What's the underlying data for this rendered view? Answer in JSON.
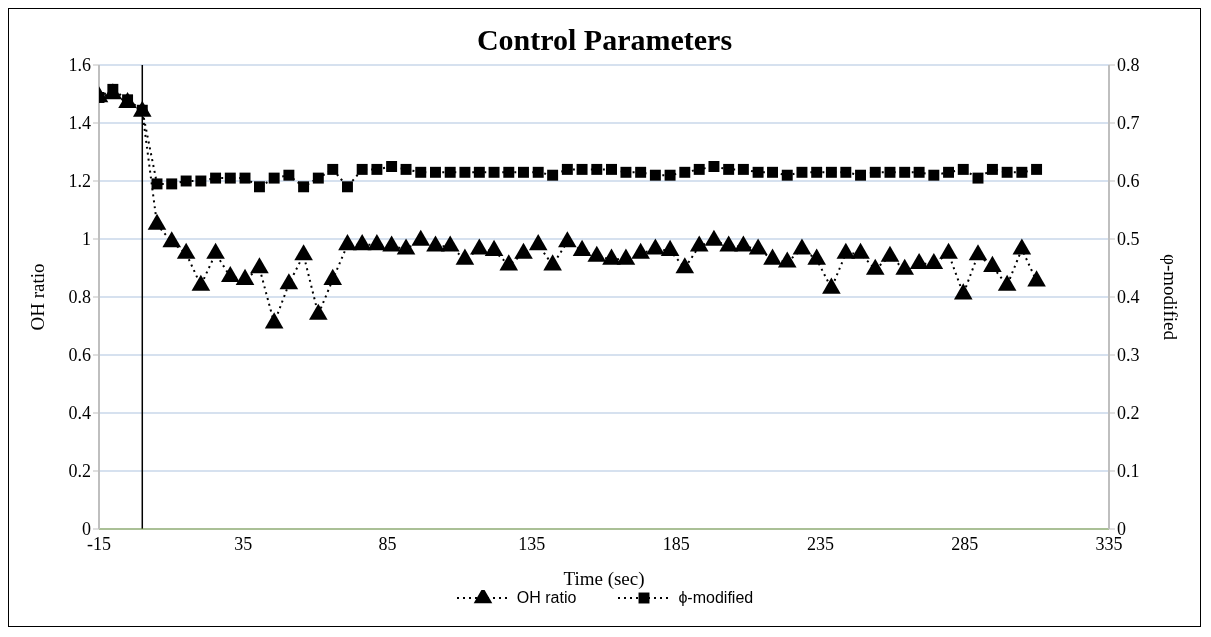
{
  "chart_data": {
    "type": "line",
    "title": "Control Parameters",
    "xlabel": "Time (sec)",
    "ylabel": "OH ratio",
    "y2label": "φ-modified",
    "x": [
      -15,
      -10.2,
      -5.1,
      0,
      5.1,
      10.2,
      15.2,
      20.3,
      25.4,
      30.5,
      35.6,
      40.6,
      45.7,
      50.8,
      55.9,
      61,
      66,
      71.1,
      76.2,
      81.3,
      86.4,
      91.4,
      96.5,
      101.6,
      106.7,
      111.8,
      116.8,
      121.9,
      127,
      132.1,
      137.2,
      142.2,
      147.3,
      152.4,
      157.5,
      162.6,
      167.6,
      172.7,
      177.8,
      182.9,
      188,
      193,
      198.1,
      203.2,
      208.3,
      213.4,
      218.4,
      223.5,
      228.6,
      233.7,
      238.8,
      243.8,
      248.9,
      254,
      259.1,
      264.2,
      269.2,
      274.3,
      279.4,
      284.5,
      289.6,
      294.6,
      299.7,
      304.8,
      309.9
    ],
    "series": [
      {
        "name": "OH ratio",
        "color": "#000000",
        "marker": "triangle",
        "values": [
          1.49,
          1.5,
          1.47,
          1.44,
          1.05,
          0.99,
          0.95,
          0.84,
          0.95,
          0.87,
          0.86,
          0.9,
          0.71,
          0.845,
          0.945,
          0.74,
          0.86,
          0.98,
          0.98,
          0.98,
          0.975,
          0.965,
          0.995,
          0.975,
          0.975,
          0.93,
          0.965,
          0.96,
          0.91,
          0.95,
          0.98,
          0.91,
          0.99,
          0.96,
          0.94,
          0.93,
          0.93,
          0.95,
          0.965,
          0.96,
          0.9,
          0.975,
          0.995,
          0.975,
          0.975,
          0.965,
          0.93,
          0.92,
          0.965,
          0.93,
          0.83,
          0.95,
          0.95,
          0.895,
          0.94,
          0.895,
          0.915,
          0.915,
          0.95,
          0.81,
          0.945,
          0.905,
          0.84,
          0.965,
          0.855
        ]
      },
      {
        "name": "ϕ-modified",
        "color": "#000000",
        "marker": "square",
        "axis": "y2",
        "values": [
          0.744,
          0.758,
          0.74,
          0.722,
          0.595,
          0.595,
          0.6,
          0.6,
          0.605,
          0.605,
          0.605,
          0.59,
          0.605,
          0.61,
          0.59,
          0.605,
          0.62,
          0.59,
          0.62,
          0.62,
          0.625,
          0.62,
          0.615,
          0.615,
          0.615,
          0.615,
          0.615,
          0.615,
          0.615,
          0.615,
          0.615,
          0.61,
          0.62,
          0.62,
          0.62,
          0.62,
          0.615,
          0.615,
          0.61,
          0.61,
          0.615,
          0.62,
          0.625,
          0.62,
          0.62,
          0.615,
          0.615,
          0.61,
          0.615,
          0.615,
          0.615,
          0.615,
          0.61,
          0.615,
          0.615,
          0.615,
          0.615,
          0.61,
          0.615,
          0.62,
          0.605,
          0.62,
          0.615,
          0.615,
          0.62
        ]
      }
    ],
    "xlim": [
      -15,
      335
    ],
    "xticks": [
      -15,
      35,
      85,
      135,
      185,
      235,
      285,
      335
    ],
    "ylim": [
      0,
      1.6
    ],
    "yticks": [
      0,
      0.2,
      0.4,
      0.6,
      0.8,
      1,
      1.2,
      1.4,
      1.6
    ],
    "y2lim": [
      0,
      0.8
    ],
    "y2ticks": [
      0,
      0.1,
      0.2,
      0.3,
      0.4,
      0.5,
      0.6,
      0.7,
      0.8
    ],
    "ref_lines": [
      {
        "axis": "x",
        "value": 0,
        "color": "#000000",
        "line_style": "solid"
      }
    ],
    "grid": "y",
    "legend": "bottom",
    "line_style": "dotted"
  }
}
